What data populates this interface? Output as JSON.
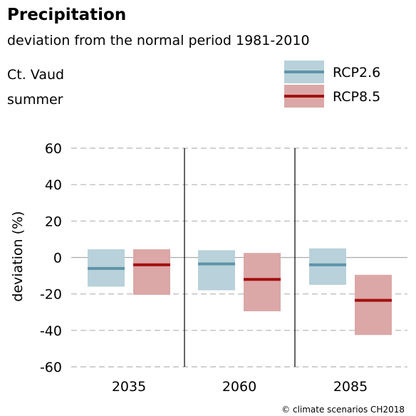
{
  "title": "Precipitation",
  "subtitle": "deviation from the normal period 1981-2010",
  "region": "Ct. Vaud",
  "season": "summer",
  "credit": "© climate scenarios CH2018",
  "chart_data": {
    "type": "range-bar",
    "ylabel": "deviation (%)",
    "ylim": [
      -60,
      60
    ],
    "yticks": [
      60,
      40,
      20,
      0,
      -20,
      -40,
      -60
    ],
    "categories": [
      "2035",
      "2060",
      "2085"
    ],
    "grid": "horizontal dashed",
    "legend_position": "top-right",
    "series": [
      {
        "name": "RCP2.6",
        "line_color": "#5e94a8",
        "fill_color": "#b8d1da",
        "median": [
          -6,
          -3.5,
          -4
        ],
        "low": [
          -16,
          -18,
          -15
        ],
        "high": [
          4.5,
          4,
          5
        ]
      },
      {
        "name": "RCP8.5",
        "line_color": "#a30f0f",
        "fill_color": "#dba7a7",
        "median": [
          -4,
          -12,
          -23.5
        ],
        "low": [
          -20.5,
          -29.5,
          -42.5
        ],
        "high": [
          4.5,
          2.5,
          -9.5
        ]
      }
    ]
  }
}
